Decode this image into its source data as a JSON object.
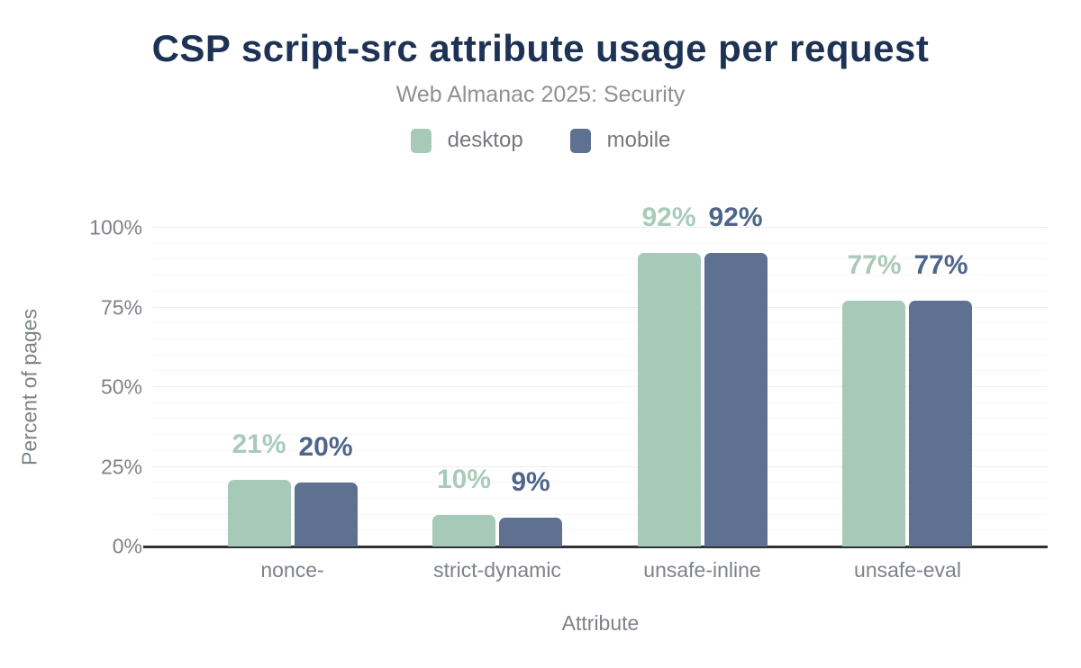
{
  "header": {
    "title": "CSP script-src attribute usage per request",
    "subtitle": "Web Almanac 2025: Security"
  },
  "chart_data": {
    "type": "bar",
    "title": "CSP script-src attribute usage per request",
    "subtitle": "Web Almanac 2025: Security",
    "categories": [
      "nonce-",
      "strict-dynamic",
      "unsafe-inline",
      "unsafe-eval"
    ],
    "series": [
      {
        "name": "desktop",
        "color": "#a7c9b8",
        "label_color": "#a9cbba",
        "values": [
          21,
          10,
          92,
          77
        ],
        "data_labels": [
          "21%",
          "10%",
          "92%",
          "77%"
        ]
      },
      {
        "name": "mobile",
        "color": "#5e7190",
        "label_color": "#4f6589",
        "values": [
          20,
          9,
          92,
          77
        ],
        "data_labels": [
          "20%",
          "9%",
          "92%",
          "77%"
        ]
      }
    ],
    "xlabel": "Attribute",
    "ylabel": "Percent of pages",
    "ylim": [
      0,
      100
    ],
    "yticks": [
      0,
      25,
      50,
      75,
      100
    ],
    "ytick_labels": [
      "0%",
      "25%",
      "50%",
      "75%",
      "100%"
    ],
    "minor_grid_step": 5,
    "major_grid_step": 25,
    "grid": true,
    "legend_position": "top",
    "colors": {
      "title": "#1e3255",
      "subtitle": "#8d9196",
      "axis_text": "#7d828a",
      "axis_line": "#2f3135",
      "grid_minor": "#f6f6f6",
      "grid_major": "#ededed",
      "background": "#ffffff"
    }
  }
}
